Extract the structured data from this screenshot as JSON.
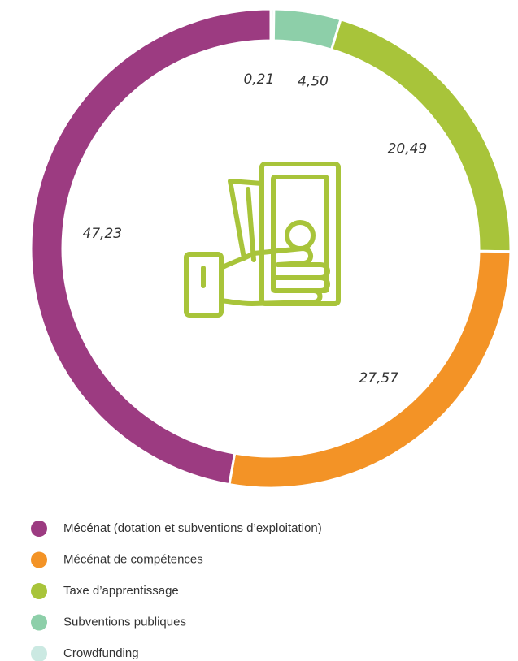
{
  "chart_data": {
    "type": "donut",
    "series": [
      {
        "name": "Mécénat (dotation et subventions d’exploitation)",
        "color": "#9c3b81",
        "values": [
          47.23
        ],
        "value_labels": [
          "47,23"
        ]
      },
      {
        "name": "Mécénat de compétences",
        "color": "#f39326",
        "values": [
          27.57
        ],
        "value_labels": [
          "27,57"
        ]
      },
      {
        "name": "Taxe d’apprentissage",
        "color": "#a8c43a",
        "values": [
          20.49
        ],
        "value_labels": [
          "20,49"
        ]
      },
      {
        "name": "Subventions publiques",
        "color": "#8dcfa9",
        "values": [
          4.5
        ],
        "value_labels": [
          "4,50"
        ]
      },
      {
        "name": "Crowdfunding",
        "color": "#cbe9e2",
        "values": [
          0.21
        ],
        "value_labels": [
          "0,21"
        ]
      }
    ],
    "legend": "bottom-left"
  }
}
